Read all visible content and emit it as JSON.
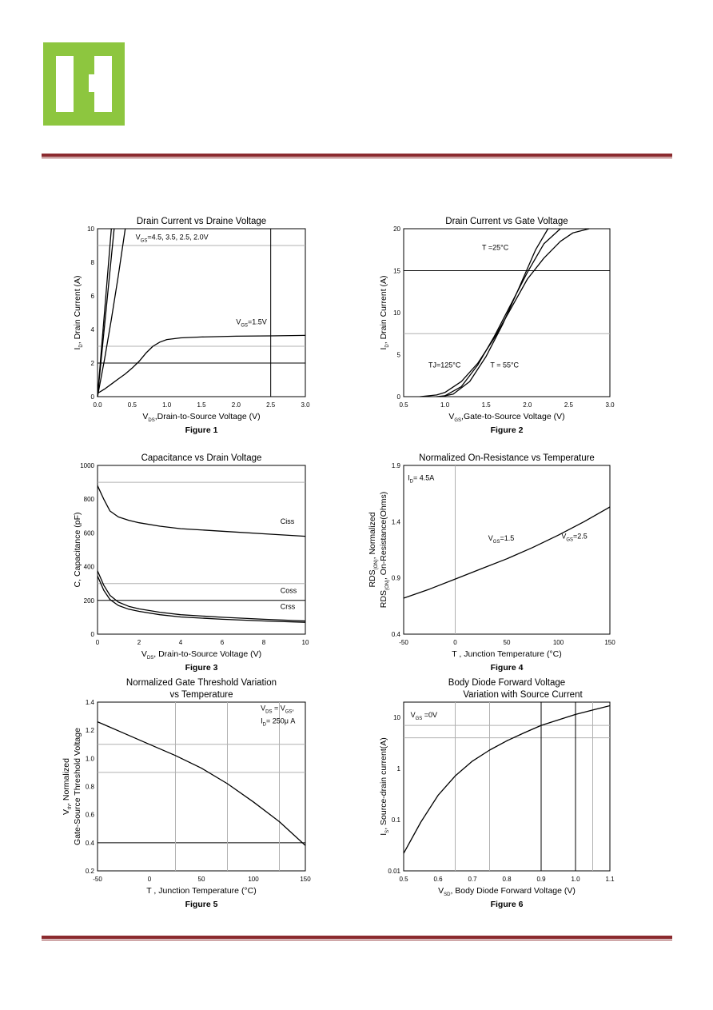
{
  "colors": {
    "brand_green": "#8dc63f",
    "rule": "#8b2a2e"
  },
  "chart_data": [
    {
      "type": "line",
      "title": "Drain Current vs Draine Voltage",
      "xlabel": "V  ,Drain-to-Source Voltage (V)",
      "xlabel_sub": "DS",
      "ylabel": "I  , Drain Current (A)",
      "ylabel_sub": "D",
      "caption": "Figure 1",
      "xlim": [
        0,
        3
      ],
      "ylim": [
        0,
        10
      ],
      "xticks": [
        {
          "v": 0,
          "l": "0.0"
        },
        {
          "v": 0.5,
          "l": "0.5"
        },
        {
          "v": 1,
          "l": "1.0"
        },
        {
          "v": 1.5,
          "l": "1.5"
        },
        {
          "v": 2,
          "l": "2.0"
        },
        {
          "v": 2.5,
          "l": "2.5"
        },
        {
          "v": 3,
          "l": "3.0"
        }
      ],
      "yticks": [
        {
          "v": 0,
          "l": "0"
        },
        {
          "v": 2,
          "l": "2"
        },
        {
          "v": 4,
          "l": "4"
        },
        {
          "v": 6,
          "l": "6"
        },
        {
          "v": 8,
          "l": "8"
        },
        {
          "v": 10,
          "l": "10"
        }
      ],
      "hgrid": [
        {
          "v": 10,
          "dark": true
        },
        {
          "v": 9,
          "dark": false
        },
        {
          "v": 3,
          "dark": false
        },
        {
          "v": 2,
          "dark": true
        }
      ],
      "vgrid": [
        {
          "v": 2.5,
          "dark": true
        }
      ],
      "series": [
        {
          "x": [
            0,
            0.05,
            0.1,
            0.15,
            0.2
          ],
          "y": [
            0,
            2.5,
            5,
            7.5,
            10
          ]
        },
        {
          "x": [
            0,
            0.06,
            0.12,
            0.18,
            0.24
          ],
          "y": [
            0,
            2.5,
            5,
            7.5,
            10
          ]
        },
        {
          "x": [
            0,
            0.1,
            0.2,
            0.3,
            0.4
          ],
          "y": [
            0,
            2.2,
            4.6,
            7.2,
            10
          ]
        },
        {
          "x": [
            0,
            0.1,
            0.2,
            0.3,
            0.4,
            0.5,
            0.6,
            0.7,
            0.8,
            0.9,
            1.0,
            1.2,
            1.5,
            2.0,
            2.5,
            3.0
          ],
          "y": [
            0.2,
            0.45,
            0.75,
            1.05,
            1.35,
            1.7,
            2.1,
            2.6,
            3.0,
            3.25,
            3.4,
            3.5,
            3.55,
            3.6,
            3.62,
            3.65
          ]
        }
      ],
      "annotations": [
        {
          "text": "V  =4.5, 3.5, 2.5, 2.0V",
          "sub": "GS",
          "x": 0.55,
          "y": 9.35
        },
        {
          "text": "V  =1.5V",
          "sub": "GS",
          "x": 2.0,
          "y": 4.3
        }
      ]
    },
    {
      "type": "line",
      "title": "Drain Current vs Gate Voltage",
      "xlabel": "V  ,Gate-to-Source Voltage (V)",
      "xlabel_sub": "GS",
      "ylabel": "I  , Drain Current (A)",
      "ylabel_sub": "D",
      "caption": "Figure 2",
      "xlim": [
        0.5,
        3
      ],
      "ylim": [
        0,
        20
      ],
      "xticks": [
        {
          "v": 0.5,
          "l": "0.5"
        },
        {
          "v": 1,
          "l": "1.0"
        },
        {
          "v": 1.5,
          "l": "1.5"
        },
        {
          "v": 2,
          "l": "2.0"
        },
        {
          "v": 2.5,
          "l": "2.5"
        },
        {
          "v": 3,
          "l": "3.0"
        }
      ],
      "yticks": [
        {
          "v": 0,
          "l": "0"
        },
        {
          "v": 5,
          "l": "5"
        },
        {
          "v": 10,
          "l": "10"
        },
        {
          "v": 15,
          "l": "15"
        },
        {
          "v": 20,
          "l": "20"
        }
      ],
      "hgrid": [
        {
          "v": 20,
          "dark": true
        },
        {
          "v": 15,
          "dark": true
        },
        {
          "v": 7.5,
          "dark": false
        }
      ],
      "vgrid": [],
      "series": [
        {
          "name": "",
          "x": [
            0.7,
            0.9,
            1.0,
            1.2,
            1.4,
            1.6,
            1.8,
            2.0,
            2.2,
            2.4,
            2.55,
            2.75
          ],
          "y": [
            0,
            0.2,
            0.5,
            1.8,
            4.0,
            7.0,
            10.5,
            14.0,
            16.5,
            18.5,
            19.5,
            20
          ]
        },
        {
          "name": "",
          "x": [
            0.9,
            1.0,
            1.2,
            1.4,
            1.6,
            1.8,
            2.0,
            2.2,
            2.4
          ],
          "y": [
            0,
            0.1,
            1.2,
            3.8,
            7.2,
            11.0,
            14.8,
            18.2,
            20
          ]
        },
        {
          "name": "",
          "x": [
            0.95,
            1.1,
            1.3,
            1.5,
            1.7,
            1.9,
            2.1,
            2.25
          ],
          "y": [
            0,
            0.3,
            1.8,
            4.8,
            8.6,
            13.0,
            17.5,
            20
          ]
        }
      ],
      "annotations": [
        {
          "text": "T =25°C",
          "sub": "J",
          "x": 1.45,
          "y": 17.5
        },
        {
          "text": "TJ=125°C",
          "sub": "",
          "x": 0.8,
          "y": 3.5
        },
        {
          "text": "T = 55°C",
          "sub": "J",
          "x": 1.55,
          "y": 3.5
        }
      ]
    },
    {
      "type": "line",
      "title": "Capacitance vs Drain Voltage",
      "xlabel": "V  , Drain-to-Source Voltage (V)",
      "xlabel_sub": "DS",
      "ylabel": "C, Capacitance (pF)",
      "ylabel_sub": "",
      "caption": "Figure 3",
      "xlim": [
        0,
        10
      ],
      "ylim": [
        0,
        1000
      ],
      "xticks": [
        {
          "v": 0,
          "l": "0"
        },
        {
          "v": 2,
          "l": "2"
        },
        {
          "v": 4,
          "l": "4"
        },
        {
          "v": 6,
          "l": "6"
        },
        {
          "v": 8,
          "l": "8"
        },
        {
          "v": 10,
          "l": "10"
        }
      ],
      "yticks": [
        {
          "v": 0,
          "l": "0"
        },
        {
          "v": 200,
          "l": "200"
        },
        {
          "v": 400,
          "l": "400"
        },
        {
          "v": 600,
          "l": "600"
        },
        {
          "v": 800,
          "l": "800"
        },
        {
          "v": 1000,
          "l": "1000"
        }
      ],
      "hgrid": [
        {
          "v": 1000,
          "dark": true
        },
        {
          "v": 900,
          "dark": false
        },
        {
          "v": 300,
          "dark": false
        },
        {
          "v": 200,
          "dark": true
        }
      ],
      "vgrid": [],
      "series": [
        {
          "name": "Ciss",
          "x": [
            0,
            0.3,
            0.6,
            1,
            1.5,
            2,
            3,
            4,
            6,
            8,
            10
          ],
          "y": [
            880,
            800,
            730,
            695,
            675,
            660,
            640,
            625,
            610,
            595,
            580
          ]
        },
        {
          "name": "Coss",
          "x": [
            0,
            0.3,
            0.6,
            1,
            1.5,
            2,
            3,
            4,
            6,
            8,
            10
          ],
          "y": [
            375,
            290,
            230,
            190,
            165,
            150,
            130,
            115,
            100,
            88,
            78
          ]
        },
        {
          "name": "Crss",
          "x": [
            0,
            0.3,
            0.6,
            1,
            1.5,
            2,
            3,
            4,
            6,
            8,
            10
          ],
          "y": [
            345,
            260,
            205,
            170,
            148,
            135,
            115,
            102,
            88,
            78,
            70
          ]
        }
      ],
      "annotations": [
        {
          "text": "Ciss",
          "sub": "",
          "x": 8.8,
          "y": 655
        },
        {
          "text": "Coss",
          "sub": "",
          "x": 8.8,
          "y": 245
        },
        {
          "text": "Crss",
          "sub": "",
          "x": 8.8,
          "y": 150
        }
      ]
    },
    {
      "type": "line",
      "title": "Normalized On-Resistance vs Temperature",
      "xlabel": "T , Junction Temperature (°C)",
      "xlabel_sub": "J",
      "ylabel_lines": [
        "RDS      , Normalized",
        "RDS      , On-Resistance(Ohms)"
      ],
      "ylabel_subs": [
        "(ON)",
        "(ON)"
      ],
      "caption": "Figure 4",
      "xlim": [
        -50,
        150
      ],
      "ylim": [
        0.4,
        1.9
      ],
      "xticks": [
        {
          "v": -50,
          "l": "-50"
        },
        {
          "v": 0,
          "l": "0"
        },
        {
          "v": 50,
          "l": "50"
        },
        {
          "v": 100,
          "l": "100"
        },
        {
          "v": 150,
          "l": "150"
        }
      ],
      "yticks": [
        {
          "v": 0.4,
          "l": "0.4"
        },
        {
          "v": 0.9,
          "l": "0.9"
        },
        {
          "v": 1.4,
          "l": "1.4"
        },
        {
          "v": 1.9,
          "l": "1.9"
        }
      ],
      "hgrid": [],
      "vgrid": [
        {
          "v": 0,
          "dark": false
        }
      ],
      "series": [
        {
          "name": "",
          "x": [
            -50,
            -25,
            0,
            25,
            50,
            75,
            100,
            125,
            150
          ],
          "y": [
            0.72,
            0.8,
            0.89,
            0.98,
            1.07,
            1.17,
            1.28,
            1.4,
            1.53
          ]
        }
      ],
      "annotations": [
        {
          "text": "I  = 4.5A",
          "sub": "D",
          "x": -46,
          "y": 1.77
        },
        {
          "text": "V  =1.5",
          "sub": "GS",
          "x": 32,
          "y": 1.23
        },
        {
          "text": "V  =2.5",
          "sub": "GS",
          "x": 103,
          "y": 1.25
        }
      ]
    },
    {
      "type": "line",
      "title": [
        "Normalized Gate Threshold Variation",
        "vs Temperature"
      ],
      "xlabel": "T , Junction Temperature (°C)",
      "xlabel_sub": "J",
      "ylabel_lines": [
        "V    , Normalized",
        "Gate-Source Threshold Voltage"
      ],
      "ylabel_subs": [
        "th",
        ""
      ],
      "caption": "Figure 5",
      "xlim": [
        -50,
        150
      ],
      "ylim": [
        0.2,
        1.4
      ],
      "xticks": [
        {
          "v": -50,
          "l": "-50"
        },
        {
          "v": 0,
          "l": "0"
        },
        {
          "v": 50,
          "l": "50"
        },
        {
          "v": 100,
          "l": "100"
        },
        {
          "v": 150,
          "l": "150"
        }
      ],
      "yticks": [
        {
          "v": 0.2,
          "l": "0.2"
        },
        {
          "v": 0.4,
          "l": "0.4"
        },
        {
          "v": 0.6,
          "l": "0.6"
        },
        {
          "v": 0.8,
          "l": "0.8"
        },
        {
          "v": 1.0,
          "l": "1.0"
        },
        {
          "v": 1.2,
          "l": "1.2"
        },
        {
          "v": 1.4,
          "l": "1.4"
        }
      ],
      "hgrid": [
        {
          "v": 1.1,
          "dark": false
        },
        {
          "v": 0.9,
          "dark": false
        },
        {
          "v": 0.4,
          "dark": true
        }
      ],
      "vgrid": [
        {
          "v": 25,
          "dark": false
        },
        {
          "v": 75,
          "dark": false
        },
        {
          "v": 125,
          "dark": false
        }
      ],
      "series": [
        {
          "name": "",
          "x": [
            -50,
            -25,
            0,
            25,
            50,
            75,
            100,
            125,
            150
          ],
          "y": [
            1.26,
            1.18,
            1.1,
            1.02,
            0.93,
            0.82,
            0.69,
            0.55,
            0.38
          ]
        }
      ],
      "annotations": [
        {
          "text": "V   = V  ,",
          "sub": "DS|GS",
          "x": 107,
          "y": 1.34
        },
        {
          "text": "I  = 250μ A",
          "sub": "D",
          "x": 107,
          "y": 1.25
        }
      ]
    },
    {
      "type": "line",
      "title": [
        "Body Diode Forward Voltage",
        "Variation with Source Current"
      ],
      "xlabel": "V  , Body Diode Forward Voltage (V)",
      "xlabel_sub": "SD",
      "ylabel": "I  , Source-drain current(A)",
      "ylabel_sub": "S",
      "caption": "Figure 6",
      "xlim": [
        0.5,
        1.1
      ],
      "ylim_log": [
        0.01,
        20
      ],
      "xticks": [
        {
          "v": 0.5,
          "l": "0.5"
        },
        {
          "v": 0.6,
          "l": "0.6"
        },
        {
          "v": 0.7,
          "l": "0.7"
        },
        {
          "v": 0.8,
          "l": "0.8"
        },
        {
          "v": 0.9,
          "l": "0.9"
        },
        {
          "v": 1.0,
          "l": "1.0"
        },
        {
          "v": 1.1,
          "l": "1.1"
        }
      ],
      "yticks": [
        {
          "v": 0.01,
          "l": "0.01"
        },
        {
          "v": 0.1,
          "l": "0.1"
        },
        {
          "v": 1,
          "l": "1"
        },
        {
          "v": 10,
          "l": "10"
        }
      ],
      "hgrid": [
        {
          "v": 7,
          "dark": false
        },
        {
          "v": 4,
          "dark": false
        }
      ],
      "vgrid": [
        {
          "v": 0.65,
          "dark": false
        },
        {
          "v": 0.75,
          "dark": false
        },
        {
          "v": 0.9,
          "dark": true
        },
        {
          "v": 1.0,
          "dark": true
        },
        {
          "v": 1.05,
          "dark": false
        }
      ],
      "series": [
        {
          "name": "",
          "x": [
            0.5,
            0.55,
            0.6,
            0.65,
            0.7,
            0.75,
            0.8,
            0.85,
            0.9,
            0.95,
            1.0,
            1.05,
            1.1
          ],
          "y": [
            0.022,
            0.09,
            0.3,
            0.72,
            1.4,
            2.3,
            3.5,
            5.0,
            7.0,
            9.0,
            11.5,
            14.0,
            17.0
          ]
        }
      ],
      "annotations": [
        {
          "text": "V   =0V",
          "sub": "GS",
          "x": 0.52,
          "y": 10
        }
      ]
    }
  ]
}
